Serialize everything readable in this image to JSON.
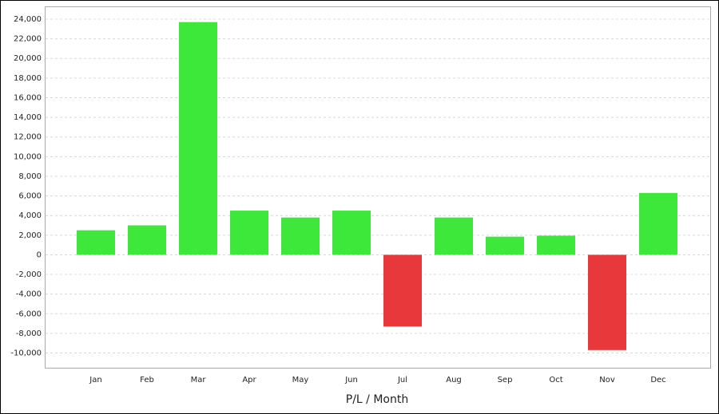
{
  "chart_data": {
    "type": "bar",
    "x_label": "P/L / Month",
    "categories": [
      "Jan",
      "Feb",
      "Mar",
      "Apr",
      "May",
      "Jun",
      "Jul",
      "Aug",
      "Sep",
      "Oct",
      "Nov",
      "Dec"
    ],
    "values": [
      2500,
      3000,
      23700,
      4500,
      3800,
      4500,
      -7300,
      3800,
      1850,
      1950,
      -9700,
      6300
    ],
    "positive_color": "#3ee83a",
    "negative_color": "#e8383c",
    "ylim": [
      -11500,
      25300
    ],
    "yticks": [
      {
        "value": -10000,
        "label": "-10,000"
      },
      {
        "value": -8000,
        "label": "-8,000"
      },
      {
        "value": -6000,
        "label": "-6,000"
      },
      {
        "value": -4000,
        "label": "-4,000"
      },
      {
        "value": -2000,
        "label": "-2,000"
      },
      0,
      {
        "value": 2000,
        "label": "2,000"
      },
      {
        "value": 4000,
        "label": "4,000"
      },
      {
        "value": 6000,
        "label": "6,000"
      },
      {
        "value": 8000,
        "label": "8,000"
      },
      {
        "value": 10000,
        "label": "10,000"
      },
      {
        "value": 12000,
        "label": "12,000"
      },
      {
        "value": 14000,
        "label": "14,000"
      },
      {
        "value": 16000,
        "label": "16,000"
      },
      {
        "value": 18000,
        "label": "18,000"
      },
      {
        "value": 20000,
        "label": "20,000"
      },
      {
        "value": 22000,
        "label": "22,000"
      },
      {
        "value": 24000,
        "label": "24,000"
      }
    ],
    "grid": true
  }
}
